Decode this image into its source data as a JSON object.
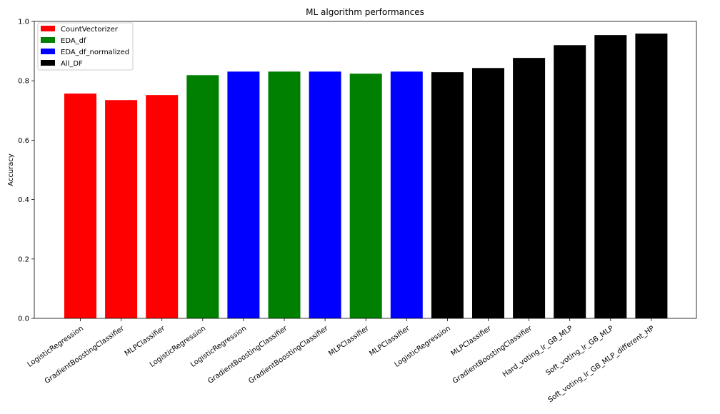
{
  "chart_data": {
    "type": "bar",
    "title": "ML algorithm performances",
    "xlabel": "",
    "ylabel": "Accuracy",
    "ylim": [
      0,
      1.0
    ],
    "yticks": [
      0.0,
      0.2,
      0.4,
      0.6,
      0.8,
      1.0
    ],
    "ytick_labels": [
      "0.0",
      "0.2",
      "0.4",
      "0.6",
      "0.8",
      "1.0"
    ],
    "grid": false,
    "legend_position": "top-left",
    "legend": [
      {
        "name": "CountVectorizer",
        "color": "#ff0000"
      },
      {
        "name": "EDA_df",
        "color": "#008000"
      },
      {
        "name": "EDA_df_normalized",
        "color": "#0000ff"
      },
      {
        "name": "All_DF",
        "color": "#000000"
      }
    ],
    "bars": [
      {
        "label": "LogisticRegression",
        "value": 0.757,
        "group": "CountVectorizer"
      },
      {
        "label": "GradientBoostingClassifier",
        "value": 0.735,
        "group": "CountVectorizer"
      },
      {
        "label": "MLPClassifier",
        "value": 0.752,
        "group": "CountVectorizer"
      },
      {
        "label": "LogisticRegression",
        "value": 0.819,
        "group": "EDA_df"
      },
      {
        "label": "LogisticRegression",
        "value": 0.831,
        "group": "EDA_df_normalized"
      },
      {
        "label": "GradientBoostingClassifier",
        "value": 0.831,
        "group": "EDA_df"
      },
      {
        "label": "GradientBoostingClassifier",
        "value": 0.831,
        "group": "EDA_df_normalized"
      },
      {
        "label": "MLPClassifier",
        "value": 0.824,
        "group": "EDA_df"
      },
      {
        "label": "MLPClassifier",
        "value": 0.831,
        "group": "EDA_df_normalized"
      },
      {
        "label": "LogisticRegression",
        "value": 0.829,
        "group": "All_DF"
      },
      {
        "label": "MLPClassifier",
        "value": 0.843,
        "group": "All_DF"
      },
      {
        "label": "GradientBoostingClassifier",
        "value": 0.877,
        "group": "All_DF"
      },
      {
        "label": "Hard_voting_lr_GB_MLP",
        "value": 0.92,
        "group": "All_DF"
      },
      {
        "label": "Soft_voting_lr_GB_MLP",
        "value": 0.954,
        "group": "All_DF"
      },
      {
        "label": "Soft_voting_lr_GB_MLP_different_HP",
        "value": 0.959,
        "group": "All_DF"
      }
    ]
  }
}
